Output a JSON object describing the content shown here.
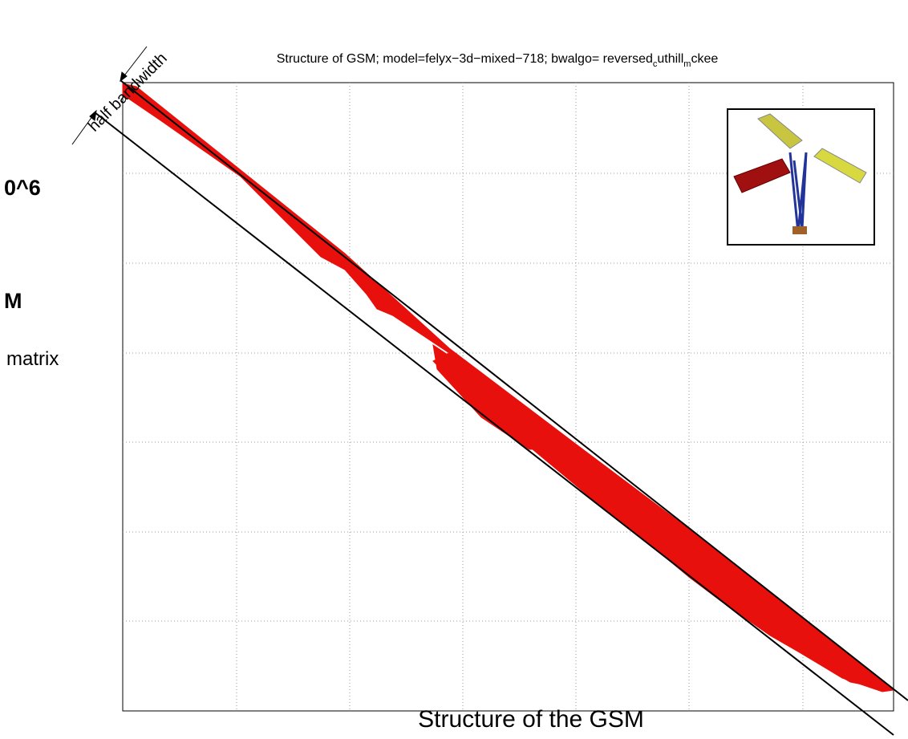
{
  "annotation": "half bandwidth",
  "plot_title": {
    "parts": [
      "Structure of GSM; model=felyx−3d−mixed−718; bwalgo= reversed",
      "c",
      "uthill",
      "m",
      "ckee"
    ]
  },
  "left_texts": [
    "0^6",
    "M",
    "matrix"
  ],
  "caption": "Structure of the GSM"
}
